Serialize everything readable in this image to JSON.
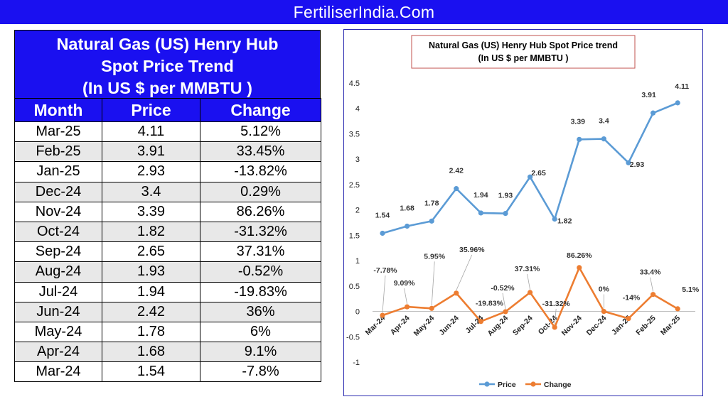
{
  "header": {
    "site": "FertiliserIndia.Com"
  },
  "table": {
    "title_lines": [
      "Natural Gas (US) Henry Hub",
      "Spot Price Trend",
      "(In US $ per MMBTU )"
    ],
    "columns": [
      "Month",
      "Price",
      "Change"
    ],
    "rows": [
      [
        "Mar-25",
        "4.11",
        "5.12%"
      ],
      [
        "Feb-25",
        "3.91",
        "33.45%"
      ],
      [
        "Jan-25",
        "2.93",
        "-13.82%"
      ],
      [
        "Dec-24",
        "3.4",
        "0.29%"
      ],
      [
        "Nov-24",
        "3.39",
        "86.26%"
      ],
      [
        "Oct-24",
        "1.82",
        "-31.32%"
      ],
      [
        "Sep-24",
        "2.65",
        "37.31%"
      ],
      [
        "Aug-24",
        "1.93",
        "-0.52%"
      ],
      [
        "Jul-24",
        "1.94",
        "-19.83%"
      ],
      [
        "Jun-24",
        "2.42",
        "36%"
      ],
      [
        "May-24",
        "1.78",
        "6%"
      ],
      [
        "Apr-24",
        "1.68",
        "9.1%"
      ],
      [
        "Mar-24",
        "1.54",
        "-7.8%"
      ]
    ]
  },
  "chart_data": {
    "type": "line",
    "title_lines": [
      "Natural Gas (US) Henry Hub Spot Price trend",
      "(In US $ per MMBTU )"
    ],
    "categories": [
      "Mar-24",
      "Apr-24",
      "May-24",
      "Jun-24",
      "Jul-24",
      "Aug-24",
      "Sep-24",
      "Oct-24",
      "Nov-24",
      "Dec-24",
      "Jan-25",
      "Feb-25",
      "Mar-25"
    ],
    "series": [
      {
        "name": "Price",
        "color": "#5b9bd5",
        "values": [
          1.54,
          1.68,
          1.78,
          2.42,
          1.94,
          1.93,
          2.65,
          1.82,
          3.39,
          3.4,
          2.93,
          3.91,
          4.11
        ],
        "labels": [
          "1.54",
          "1.68",
          "1.78",
          "2.42",
          "1.94",
          "1.93",
          "2.65",
          "1.82",
          "3.39",
          "3.4",
          "2.93",
          "3.91",
          "4.11"
        ]
      },
      {
        "name": "Change",
        "color": "#ed7d31",
        "values": [
          -0.0778,
          0.0909,
          0.0595,
          0.3596,
          -0.1983,
          -0.0052,
          0.3731,
          -0.3132,
          0.8626,
          0,
          -0.14,
          0.334,
          0.051
        ],
        "labels": [
          "-7.78%",
          "9.09%",
          "5.95%",
          "35.96%",
          "-19.83%",
          "-0.52%",
          "37.31%",
          "-31.32%",
          "86.26%",
          "0%",
          "-14%",
          "33.4%",
          "5.1%"
        ]
      }
    ],
    "yticks": [
      "-1",
      "-0.5",
      "0",
      "0.5",
      "1",
      "1.5",
      "2",
      "2.5",
      "3",
      "3.5",
      "4",
      "4.5"
    ],
    "ylim": [
      -1,
      4.5
    ],
    "grid": false,
    "legend": "bottom"
  }
}
